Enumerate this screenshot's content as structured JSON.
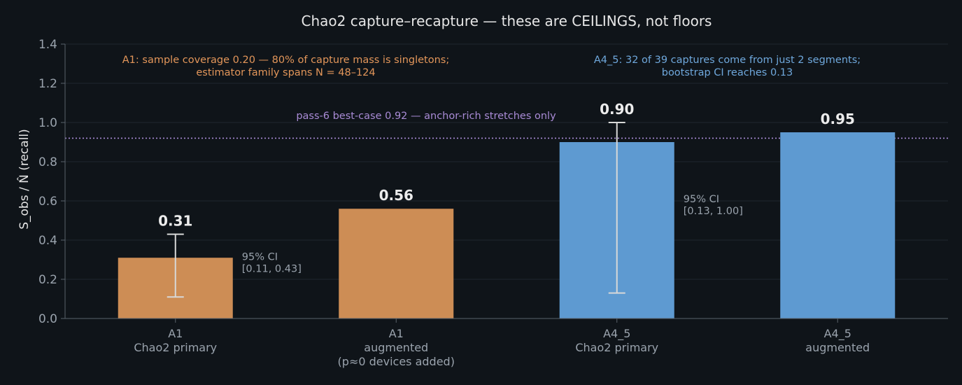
{
  "chart_data": {
    "type": "bar",
    "title": "Chao2 capture–recapture — these are CEILINGS, not floors",
    "ylabel": "S_obs / N̂  (recall)",
    "xlabel": "",
    "ylim": [
      0,
      1.4
    ],
    "yticks": [
      "0.0",
      "0.2",
      "0.4",
      "0.6",
      "0.8",
      "1.0",
      "1.2",
      "1.4"
    ],
    "grid": true,
    "categories": [
      [
        "A1",
        "Chao2 primary"
      ],
      [
        "A1",
        "augmented",
        "(p≈0 devices added)"
      ],
      [
        "A4_5",
        "Chao2 primary"
      ],
      [
        "A4_5",
        "augmented"
      ]
    ],
    "values": [
      0.31,
      0.56,
      0.9,
      0.95
    ],
    "value_labels": [
      "0.31",
      "0.56",
      "0.90",
      "0.95"
    ],
    "colors": [
      "#cd8d55",
      "#cd8d55",
      "#5e9ad1",
      "#5e9ad1"
    ],
    "error_bars": [
      {
        "index": 0,
        "low": 0.11,
        "high": 0.43,
        "label": [
          "95% CI",
          "[0.11, 0.43]"
        ]
      },
      {
        "index": 2,
        "low": 0.13,
        "high": 1.0,
        "label": [
          "95% CI",
          "[0.13, 1.00]"
        ]
      }
    ],
    "reference_line": {
      "y": 0.92,
      "color": "#a98bd6",
      "label": "pass-6 best-case 0.92 — anchor-rich stretches only"
    },
    "annotations": [
      {
        "group": "A1",
        "color": "#e3965a",
        "lines": [
          "A1: sample coverage 0.20 — 80% of capture mass is singletons;",
          "estimator family spans N = 48–124"
        ]
      },
      {
        "group": "A4_5",
        "color": "#6fa8dc",
        "lines": [
          "A4_5: 32 of 39 captures come from just 2 segments;",
          "bootstrap CI reaches 0.13"
        ]
      }
    ]
  },
  "style": {
    "background": "#0f1419",
    "grid_color": "#1f262e",
    "axis_color": "#5a626b",
    "errorbar_color": "#d8d8d8"
  }
}
